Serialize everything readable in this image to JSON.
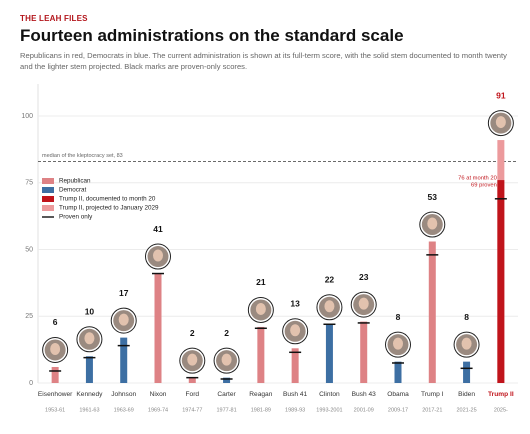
{
  "chart_data": {
    "type": "bar",
    "kicker": "THE LEAH FILES",
    "title": "Fourteen administrations on the standard scale",
    "subtitle": "Republicans in red, Democrats in blue. The current administration is shown at its full-term score, with the solid stem documented to month twenty and the lighter stem projected. Black marks are proven-only scores.",
    "categories": [
      "Eisenhower",
      "Kennedy",
      "Johnson",
      "Nixon",
      "Ford",
      "Carter",
      "Reagan",
      "Bush 41",
      "Clinton",
      "Bush 43",
      "Obama",
      "Trump I",
      "Biden",
      "Trump II"
    ],
    "periods": [
      "1953-61",
      "1961-63",
      "1963-69",
      "1969-74",
      "1974-77",
      "1977-81",
      "1981-89",
      "1989-93",
      "1993-2001",
      "2001-09",
      "2009-17",
      "2017-21",
      "2021-25",
      "2025-"
    ],
    "values": [
      6,
      10,
      17,
      41,
      2,
      2,
      21,
      13,
      22,
      23,
      8,
      53,
      8,
      91
    ],
    "proven": [
      4.5,
      9.5,
      14,
      41,
      2,
      1.5,
      20.5,
      11.5,
      22,
      22.5,
      7.5,
      48,
      5.5,
      69
    ],
    "documented": [
      null,
      null,
      null,
      null,
      null,
      null,
      null,
      null,
      null,
      null,
      null,
      null,
      null,
      76
    ],
    "colors": [
      "#de8285",
      "#3d6fa3",
      "#3d6fa3",
      "#de8285",
      "#de8285",
      "#3d6fa3",
      "#de8285",
      "#de8285",
      "#3d6fa3",
      "#de8285",
      "#3d6fa3",
      "#de8285",
      "#3d6fa3",
      "#ec9a9c"
    ],
    "legend": [
      {
        "name": "Republican",
        "color": "#de8285"
      },
      {
        "name": "Democrat",
        "color": "#3d6fa3"
      },
      {
        "name": "Trump II, documented to month 20",
        "color": "#c0141b"
      },
      {
        "name": "Trump II, projected to January 2029",
        "color": "#ec9a9c"
      },
      {
        "name": "Proven only",
        "color": "#111111"
      }
    ],
    "median": 83,
    "median_label": "median of the kleptocracy set, 83",
    "annotations": [
      "76 at month 20",
      "69 proven"
    ],
    "ylim": [
      0,
      112
    ],
    "yticks": [
      0,
      25,
      50,
      75,
      100
    ],
    "grid": true
  }
}
